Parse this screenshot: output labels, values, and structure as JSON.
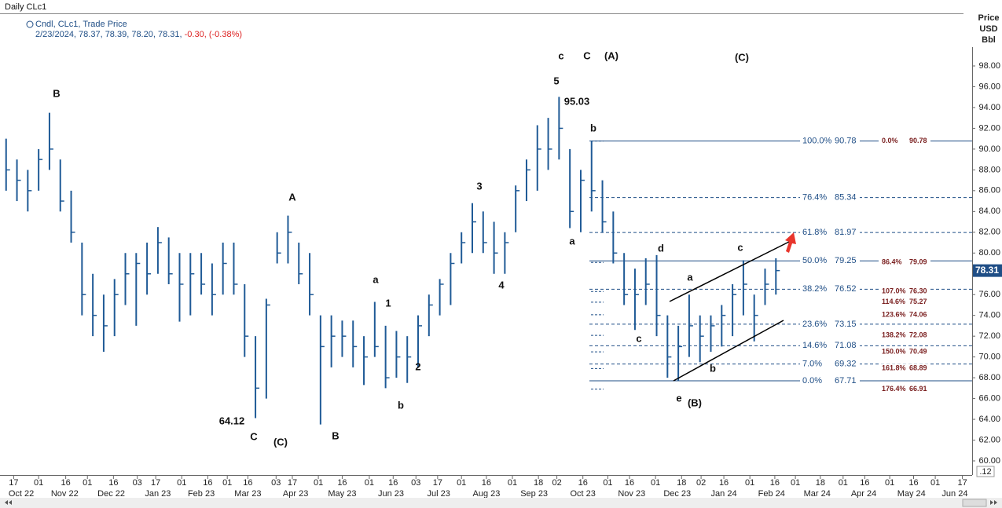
{
  "chart_data": {
    "type": "ohlc",
    "header": {
      "title": "Daily CLc1",
      "legend": "Cndl, CLc1, Trade Price",
      "quote": "2/23/2024, 78.37, 78.39, 78.20, 78.31,",
      "change": "-0.30,",
      "change_pct": "(-0.38%)"
    },
    "ylabel_lines": [
      "Price",
      "USD",
      "Bbl"
    ],
    "color": "#1f5a96",
    "x": [
      0,
      1,
      2,
      3,
      4,
      5,
      6,
      7,
      8,
      9,
      10,
      11,
      12,
      13,
      14,
      15,
      16,
      17,
      18,
      19,
      20,
      21,
      22,
      23,
      24,
      25,
      26,
      27,
      28,
      29,
      30,
      31,
      32,
      33,
      34,
      35,
      36,
      37,
      38,
      39,
      40,
      41,
      42,
      43,
      44,
      45,
      46,
      47,
      48,
      49,
      50,
      51,
      52,
      53,
      54,
      55,
      56,
      57,
      58,
      59,
      60,
      61,
      62,
      63,
      64,
      65,
      66,
      67,
      68,
      69,
      70,
      71
    ],
    "high": [
      91,
      89,
      88,
      90,
      93.5,
      89,
      86,
      81,
      78,
      76,
      77.5,
      80,
      80,
      81,
      82.5,
      81.5,
      80,
      80,
      80,
      79,
      81,
      81,
      77,
      72,
      75.6,
      82,
      83.6,
      81,
      80,
      74,
      74,
      73.5,
      73.5,
      72,
      75.3,
      73,
      72.5,
      72,
      74,
      76,
      77.5,
      80,
      82,
      84.8,
      84,
      83,
      82,
      86.5,
      89,
      92.3,
      93,
      95.03,
      90,
      88,
      90.8,
      87,
      84,
      80,
      78.5,
      79.5,
      79.8,
      74,
      73,
      76,
      74,
      74,
      75,
      77,
      79.3,
      76,
      78.5,
      79.5
    ],
    "low": [
      86,
      85,
      84,
      86,
      88,
      84,
      81,
      74,
      72,
      70.5,
      72,
      75,
      73,
      76,
      78,
      77,
      73.4,
      74,
      76,
      74,
      76,
      76,
      70,
      64.12,
      66,
      79,
      79,
      77,
      74,
      63.5,
      69,
      70,
      69,
      67.3,
      70,
      67,
      68,
      67.5,
      69,
      72,
      74,
      75,
      79,
      80,
      80,
      78,
      78,
      82,
      85,
      86,
      88,
      89,
      82.4,
      82,
      84,
      82,
      79,
      75,
      72.6,
      75,
      72,
      68,
      67.71,
      70,
      69.5,
      70.5,
      71,
      72,
      74,
      71.5,
      75,
      76
    ],
    "close": [
      88,
      87,
      86,
      89,
      90,
      85,
      82,
      76,
      74,
      73,
      76,
      78,
      79,
      78,
      81,
      78,
      77,
      78,
      77,
      76,
      79,
      77,
      72,
      67,
      75,
      80,
      82,
      78,
      76,
      71,
      72,
      72,
      71,
      70,
      71,
      68,
      70,
      70,
      73,
      75,
      77,
      79,
      81,
      83,
      81,
      80,
      81,
      86,
      88,
      90,
      90,
      92,
      84,
      87,
      86,
      83,
      80,
      76,
      76,
      77,
      74,
      70,
      71,
      73,
      72,
      73,
      74,
      76,
      77,
      74,
      77,
      78.31
    ],
    "last_price": 78.31,
    "xlim": [
      -0.2,
      89.1
    ],
    "ylim": [
      60,
      98
    ],
    "yticks": [
      {
        "value": 60,
        "label": "60.00"
      },
      {
        "value": 62,
        "label": "62.00"
      },
      {
        "value": 64,
        "label": "64.00"
      },
      {
        "value": 66,
        "label": "66.00"
      },
      {
        "value": 68,
        "label": "68.00"
      },
      {
        "value": 70,
        "label": "70.00"
      },
      {
        "value": 72,
        "label": "72.00"
      },
      {
        "value": 74,
        "label": "74.00"
      },
      {
        "value": 76,
        "label": "76.00"
      },
      {
        "value": 78,
        "label": "78.00"
      },
      {
        "value": 80,
        "label": "80.00"
      },
      {
        "value": 82,
        "label": "82.00"
      },
      {
        "value": 84,
        "label": "84.00"
      },
      {
        "value": 86,
        "label": "86.00"
      },
      {
        "value": 88,
        "label": "88.00"
      },
      {
        "value": 90,
        "label": "90.00"
      },
      {
        "value": 92,
        "label": "92.00"
      },
      {
        "value": 94,
        "label": "94.00"
      },
      {
        "value": 96,
        "label": "96.00"
      },
      {
        "value": 98,
        "label": "98.00"
      }
    ],
    "xticks": [
      {
        "value": 0.7,
        "label": "17"
      },
      {
        "value": 3.0,
        "label": "01"
      },
      {
        "value": 5.5,
        "label": "16"
      },
      {
        "value": 7.5,
        "label": "01"
      },
      {
        "value": 9.9,
        "label": "16"
      },
      {
        "value": 12.1,
        "label": "03"
      },
      {
        "value": 13.8,
        "label": "17"
      },
      {
        "value": 16.2,
        "label": "01"
      },
      {
        "value": 18.6,
        "label": "16"
      },
      {
        "value": 20.4,
        "label": "01"
      },
      {
        "value": 22.3,
        "label": "16"
      },
      {
        "value": 24.9,
        "label": "03"
      },
      {
        "value": 26.4,
        "label": "17"
      },
      {
        "value": 28.8,
        "label": "01"
      },
      {
        "value": 31.0,
        "label": "16"
      },
      {
        "value": 33.5,
        "label": "01"
      },
      {
        "value": 35.7,
        "label": "16"
      },
      {
        "value": 37.8,
        "label": "03"
      },
      {
        "value": 39.8,
        "label": "17"
      },
      {
        "value": 42.0,
        "label": "01"
      },
      {
        "value": 44.3,
        "label": "16"
      },
      {
        "value": 46.7,
        "label": "01"
      },
      {
        "value": 49.1,
        "label": "18"
      },
      {
        "value": 50.8,
        "label": "02"
      },
      {
        "value": 53.2,
        "label": "16"
      },
      {
        "value": 55.5,
        "label": "01"
      },
      {
        "value": 57.5,
        "label": "16"
      },
      {
        "value": 59.9,
        "label": "01"
      },
      {
        "value": 62.3,
        "label": "18"
      },
      {
        "value": 64.1,
        "label": "02"
      },
      {
        "value": 66.2,
        "label": "16"
      },
      {
        "value": 68.6,
        "label": "01"
      },
      {
        "value": 70.9,
        "label": "16"
      },
      {
        "value": 72.8,
        "label": "01"
      },
      {
        "value": 75.1,
        "label": "18"
      },
      {
        "value": 77.2,
        "label": "01"
      },
      {
        "value": 79.2,
        "label": "16"
      },
      {
        "value": 81.5,
        "label": "01"
      },
      {
        "value": 83.7,
        "label": "16"
      },
      {
        "value": 85.7,
        "label": "01"
      },
      {
        "value": 88.2,
        "label": "17"
      }
    ],
    "month_ticks": [
      {
        "value": 1.4,
        "label": "Oct 22"
      },
      {
        "value": 5.4,
        "label": "Nov 22"
      },
      {
        "value": 9.7,
        "label": "Dec 22"
      },
      {
        "value": 14.0,
        "label": "Jan 23"
      },
      {
        "value": 18.0,
        "label": "Feb 23"
      },
      {
        "value": 22.3,
        "label": "Mar 23"
      },
      {
        "value": 26.7,
        "label": "Apr 23"
      },
      {
        "value": 31.0,
        "label": "May 23"
      },
      {
        "value": 35.5,
        "label": "Jun 23"
      },
      {
        "value": 39.9,
        "label": "Jul 23"
      },
      {
        "value": 44.3,
        "label": "Aug 23"
      },
      {
        "value": 48.7,
        "label": "Sep 23"
      },
      {
        "value": 53.2,
        "label": "Oct 23"
      },
      {
        "value": 57.7,
        "label": "Nov 23"
      },
      {
        "value": 61.9,
        "label": "Dec 23"
      },
      {
        "value": 66.2,
        "label": "Jan 24"
      },
      {
        "value": 70.6,
        "label": "Feb 24"
      },
      {
        "value": 74.8,
        "label": "Mar 24"
      },
      {
        "value": 79.1,
        "label": "Apr 24"
      },
      {
        "value": 83.5,
        "label": "May 24"
      },
      {
        "value": 87.5,
        "label": "Jun 24"
      }
    ],
    "fib_levels": [
      {
        "pct": "100.0%",
        "value": 90.78,
        "style": "solid"
      },
      {
        "pct": "76.4%",
        "value": 85.34,
        "style": "dashed"
      },
      {
        "pct": "61.8%",
        "value": 81.97,
        "style": "dashed"
      },
      {
        "pct": "50.0%",
        "value": 79.25,
        "style": "solid"
      },
      {
        "pct": "38.2%",
        "value": 76.52,
        "style": "dashed"
      },
      {
        "pct": "23.6%",
        "value": 73.15,
        "style": "dashed"
      },
      {
        "pct": "14.6%",
        "value": 71.08,
        "style": "dashed"
      },
      {
        "pct": "7.0%",
        "value": 69.32,
        "style": "dashed"
      },
      {
        "pct": "0.0%",
        "value": 67.71,
        "style": "solid"
      }
    ],
    "fib_extensions": [
      {
        "pct": "0.0%",
        "value": 90.78
      },
      {
        "pct": "86.4%",
        "value": 79.09
      },
      {
        "pct": "107.0%",
        "value": 76.3,
        "label": "76.30"
      },
      {
        "pct": "114.6%",
        "value": 75.27
      },
      {
        "pct": "123.6%",
        "value": 74.06
      },
      {
        "pct": "138.2%",
        "value": 72.08
      },
      {
        "pct": "150.0%",
        "value": 70.49
      },
      {
        "pct": "161.8%",
        "value": 68.89
      },
      {
        "pct": "176.4%",
        "value": 66.91
      }
    ],
    "annotations": [
      "B",
      "A",
      "64.12",
      "C",
      "(C)",
      "B",
      "a",
      "1",
      "2",
      "b",
      "3",
      "4",
      "5",
      "95.03",
      "c",
      "C",
      "(A)",
      "b",
      "a",
      "c",
      "d",
      "a",
      "e",
      "(B)",
      "b",
      "c",
      "(C)"
    ],
    "scale_note": ".12"
  }
}
